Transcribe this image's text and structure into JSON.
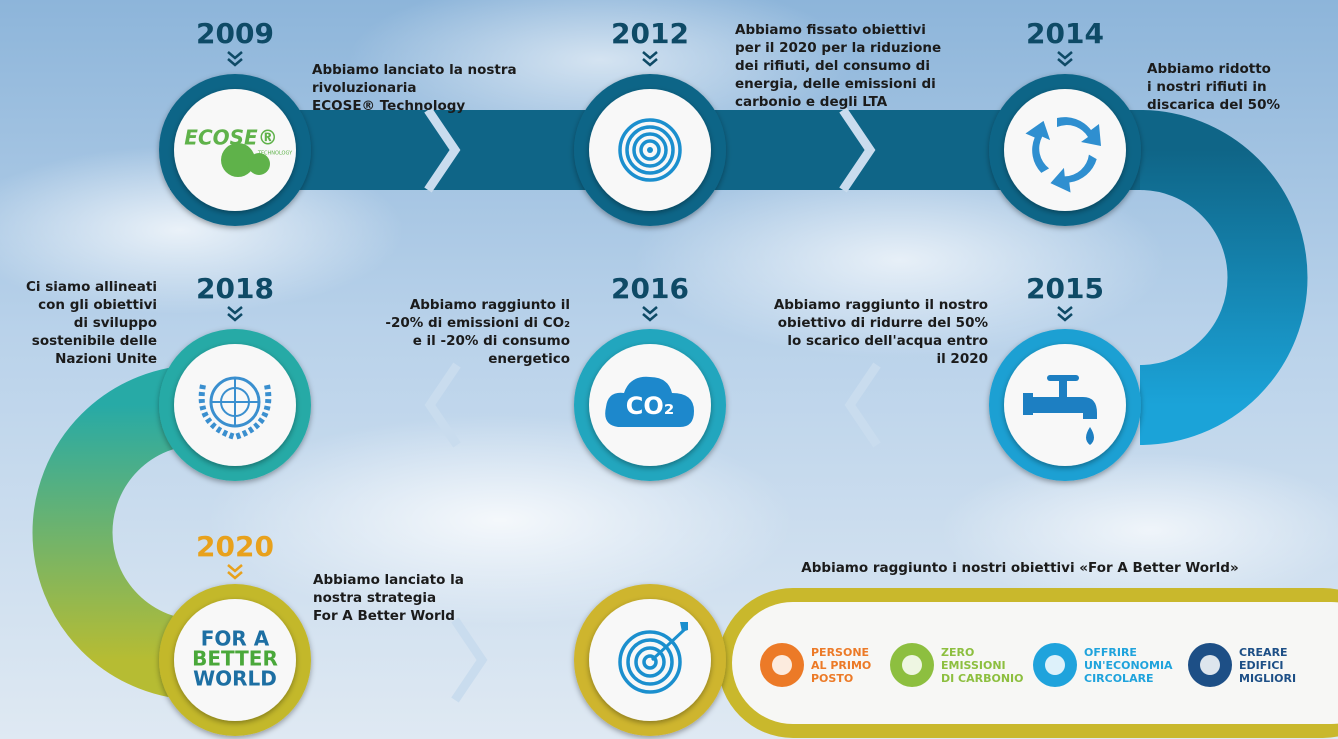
{
  "milestones": [
    {
      "year": "2009",
      "text": [
        "Abbiamo lanciato la nostra",
        "rivoluzionaria",
        "ECOSE® Technology"
      ],
      "icon_text": [
        "ECOSE®",
        "TECHNOLOGY"
      ]
    },
    {
      "year": "2012",
      "text": [
        "Abbiamo fissato obiettivi",
        "per il 2020 per la riduzione",
        "dei rifiuti, del consumo di",
        "energia, delle emissioni di",
        "carbonio e degli LTA"
      ]
    },
    {
      "year": "2014",
      "text": [
        "Abbiamo ridotto",
        "i nostri rifiuti in",
        "discarica del 50%"
      ]
    },
    {
      "year": "2015",
      "text": [
        "Abbiamo raggiunto il nostro",
        "obiettivo di ridurre del 50%",
        "lo scarico dell'acqua entro",
        "il 2020"
      ]
    },
    {
      "year": "2016",
      "text": [
        "Abbiamo raggiunto il",
        "-20% di emissioni di CO₂",
        "e il -20% di consumo",
        "energetico"
      ],
      "icon_text": [
        "CO₂"
      ]
    },
    {
      "year": "2018",
      "text": [
        "Ci siamo allineati",
        "con gli obiettivi",
        "di sviluppo",
        "sostenibile delle",
        "Nazioni Unite"
      ]
    },
    {
      "year": "2020",
      "text": [
        "Abbiamo lanciato la",
        "nostra strategia",
        "For A Better World"
      ],
      "icon_text": [
        "FOR A",
        "BETTER",
        "WORLD"
      ]
    }
  ],
  "goals": {
    "heading": "Abbiamo raggiunto i nostri obiettivi «For A Better World»",
    "pillars": [
      {
        "lines": [
          "PERSONE",
          "AL PRIMO",
          "POSTO"
        ]
      },
      {
        "lines": [
          "ZERO",
          "EMISSIONI",
          "DI CARBONIO"
        ]
      },
      {
        "lines": [
          "OFFRIRE",
          "UN'ECONOMIA",
          "CIRCOLARE"
        ]
      },
      {
        "lines": [
          "CREARE",
          "EDIFICI",
          "MIGLIORI"
        ]
      }
    ]
  }
}
